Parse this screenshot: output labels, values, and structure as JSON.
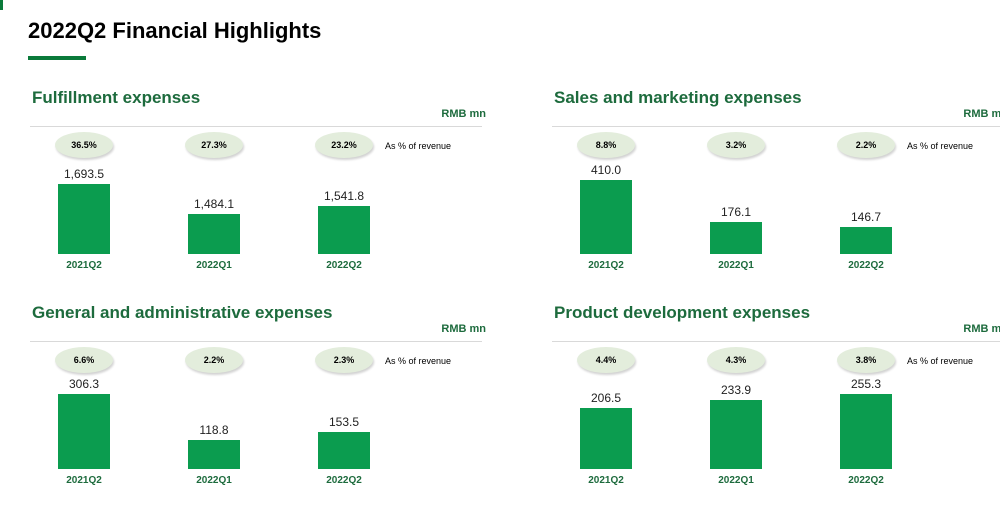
{
  "page": {
    "title": "2022Q2 Financial Highlights"
  },
  "chart_data": [
    {
      "type": "bar",
      "title": "Fulfillment expenses",
      "unit": "RMB mn",
      "categories": [
        "2021Q2",
        "2022Q1",
        "2022Q2"
      ],
      "values": [
        1693.5,
        1484.1,
        1541.8
      ],
      "value_labels": [
        "1,693.5",
        "1,484.1",
        "1,541.8"
      ],
      "pct_of_revenue": [
        "36.5%",
        "27.3%",
        "23.2%"
      ],
      "pct_note": "As % of revenue",
      "ylim": [
        1200,
        1750
      ]
    },
    {
      "type": "bar",
      "title": "Sales and marketing expenses",
      "unit": "RMB mn",
      "categories": [
        "2021Q2",
        "2022Q1",
        "2022Q2"
      ],
      "values": [
        410.0,
        176.1,
        146.7
      ],
      "value_labels": [
        "410.0",
        "176.1",
        "146.7"
      ],
      "pct_of_revenue": [
        "8.8%",
        "3.2%",
        "2.2%"
      ],
      "pct_note": "As % of revenue",
      "ylim": [
        0,
        430
      ]
    },
    {
      "type": "bar",
      "title": "General and administrative expenses",
      "unit": "RMB mn",
      "categories": [
        "2021Q2",
        "2022Q1",
        "2022Q2"
      ],
      "values": [
        306.3,
        118.8,
        153.5
      ],
      "value_labels": [
        "306.3",
        "118.8",
        "153.5"
      ],
      "pct_of_revenue": [
        "6.6%",
        "2.2%",
        "2.3%"
      ],
      "pct_note": "As % of revenue",
      "ylim": [
        0,
        320
      ]
    },
    {
      "type": "bar",
      "title": "Product development expenses",
      "unit": "RMB mn",
      "categories": [
        "2021Q2",
        "2022Q1",
        "2022Q2"
      ],
      "values": [
        206.5,
        233.9,
        255.3
      ],
      "value_labels": [
        "206.5",
        "233.9",
        "255.3"
      ],
      "pct_of_revenue": [
        "4.4%",
        "4.3%",
        "3.8%"
      ],
      "pct_note": "As % of revenue",
      "ylim": [
        0,
        265
      ]
    }
  ],
  "colors": {
    "bar": "#0b9c4f",
    "accent": "#1d6b3d",
    "pill": "#e3eddc"
  }
}
